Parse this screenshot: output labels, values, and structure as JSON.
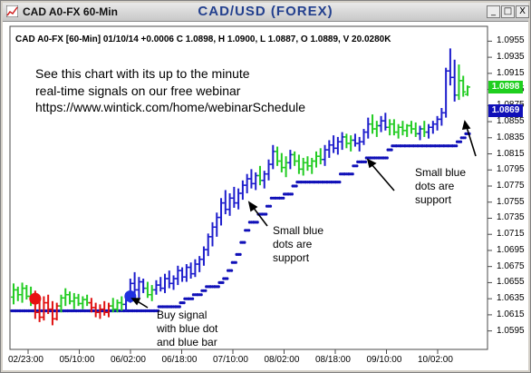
{
  "window": {
    "title_left": "CAD A0-FX 60-Min",
    "title_center": "CAD/USD (FOREX)",
    "buttons": [
      "_",
      "□",
      "X"
    ]
  },
  "info_line": "CAD A0-FX [60-Min] 01/10/14 +0.0006 C 1.0898, H 1.0900, L 1.0887, O 1.0889, V 20.0280K",
  "promo": [
    "See this chart with its up to the minute",
    "real-time signals on our free webinar",
    "https://www.wintick.com/home/webinarSchedule"
  ],
  "annotations": {
    "buy": "Buy signal\nwith blue dot\nand blue bar",
    "support_mid": "Small blue\ndots are\nsupport",
    "support_right": "Small blue\ndots are\nsupport"
  },
  "chart_data": {
    "type": "ohlc",
    "y_ticks": [
      "1.0955",
      "1.0935",
      "1.0915",
      "1.0895",
      "1.0875",
      "1.0855",
      "1.0835",
      "1.0815",
      "1.0795",
      "1.0775",
      "1.0755",
      "1.0735",
      "1.0715",
      "1.0695",
      "1.0675",
      "1.0655",
      "1.0635",
      "1.0615",
      "1.0595"
    ],
    "ylim": [
      1.0585,
      1.0965
    ],
    "x_ticks": [
      "02/23:00",
      "05/10:00",
      "06/02:00",
      "06/18:00",
      "07/10:00",
      "08/02:00",
      "08/18:00",
      "09/10:00",
      "10/02:00"
    ],
    "last_price": "1.0898",
    "support_price": "1.0869",
    "colors": {
      "up": "#1d1dcc",
      "down": "#e01010",
      "neutral": "#22cc22",
      "support": "#1010b8",
      "up_box": "#1fcf1f",
      "support_box": "#1010b8"
    },
    "bars": [
      {
        "o": 1.0637,
        "h": 1.0654,
        "l": 1.0628,
        "c": 1.0646,
        "k": "n"
      },
      {
        "o": 1.0646,
        "h": 1.065,
        "l": 1.0632,
        "c": 1.064,
        "k": "n"
      },
      {
        "o": 1.064,
        "h": 1.0655,
        "l": 1.063,
        "c": 1.0648,
        "k": "n"
      },
      {
        "o": 1.0648,
        "h": 1.0652,
        "l": 1.0634,
        "c": 1.0638,
        "k": "n"
      },
      {
        "o": 1.0638,
        "h": 1.065,
        "l": 1.0626,
        "c": 1.0632,
        "k": "n"
      },
      {
        "o": 1.0632,
        "h": 1.0645,
        "l": 1.061,
        "c": 1.0618,
        "k": "d"
      },
      {
        "o": 1.0618,
        "h": 1.0635,
        "l": 1.0606,
        "c": 1.0612,
        "k": "d"
      },
      {
        "o": 1.0612,
        "h": 1.0638,
        "l": 1.0608,
        "c": 1.063,
        "k": "d"
      },
      {
        "o": 1.063,
        "h": 1.064,
        "l": 1.0616,
        "c": 1.0622,
        "k": "d"
      },
      {
        "o": 1.0622,
        "h": 1.0632,
        "l": 1.0602,
        "c": 1.061,
        "k": "d"
      },
      {
        "o": 1.061,
        "h": 1.063,
        "l": 1.0608,
        "c": 1.0626,
        "k": "d"
      },
      {
        "o": 1.0626,
        "h": 1.064,
        "l": 1.0618,
        "c": 1.0636,
        "k": "n"
      },
      {
        "o": 1.0636,
        "h": 1.0648,
        "l": 1.0626,
        "c": 1.064,
        "k": "n"
      },
      {
        "o": 1.064,
        "h": 1.0644,
        "l": 1.0628,
        "c": 1.0632,
        "k": "n"
      },
      {
        "o": 1.0632,
        "h": 1.0642,
        "l": 1.0622,
        "c": 1.0636,
        "k": "n"
      },
      {
        "o": 1.0636,
        "h": 1.0641,
        "l": 1.0626,
        "c": 1.0629,
        "k": "n"
      },
      {
        "o": 1.0629,
        "h": 1.0638,
        "l": 1.0622,
        "c": 1.0634,
        "k": "n"
      },
      {
        "o": 1.0634,
        "h": 1.064,
        "l": 1.0626,
        "c": 1.063,
        "k": "n"
      },
      {
        "o": 1.063,
        "h": 1.0636,
        "l": 1.0618,
        "c": 1.0624,
        "k": "d"
      },
      {
        "o": 1.0624,
        "h": 1.063,
        "l": 1.0612,
        "c": 1.0618,
        "k": "d"
      },
      {
        "o": 1.0618,
        "h": 1.0628,
        "l": 1.061,
        "c": 1.0622,
        "k": "d"
      },
      {
        "o": 1.0622,
        "h": 1.0632,
        "l": 1.0614,
        "c": 1.0618,
        "k": "d"
      },
      {
        "o": 1.0618,
        "h": 1.063,
        "l": 1.0612,
        "c": 1.0626,
        "k": "d"
      },
      {
        "o": 1.0626,
        "h": 1.0636,
        "l": 1.0618,
        "c": 1.0622,
        "k": "n"
      },
      {
        "o": 1.0622,
        "h": 1.0634,
        "l": 1.0618,
        "c": 1.063,
        "k": "n"
      },
      {
        "o": 1.063,
        "h": 1.0638,
        "l": 1.062,
        "c": 1.0628,
        "k": "n"
      },
      {
        "o": 1.0628,
        "h": 1.0642,
        "l": 1.062,
        "c": 1.0636,
        "k": "u"
      },
      {
        "o": 1.0636,
        "h": 1.066,
        "l": 1.063,
        "c": 1.0654,
        "k": "u"
      },
      {
        "o": 1.0654,
        "h": 1.0668,
        "l": 1.064,
        "c": 1.0646,
        "k": "u"
      },
      {
        "o": 1.0646,
        "h": 1.0662,
        "l": 1.0636,
        "c": 1.0656,
        "k": "u"
      },
      {
        "o": 1.0656,
        "h": 1.066,
        "l": 1.0642,
        "c": 1.0648,
        "k": "u"
      },
      {
        "o": 1.0648,
        "h": 1.0656,
        "l": 1.0636,
        "c": 1.064,
        "k": "n"
      },
      {
        "o": 1.064,
        "h": 1.0652,
        "l": 1.0632,
        "c": 1.0646,
        "k": "n"
      },
      {
        "o": 1.0646,
        "h": 1.0658,
        "l": 1.064,
        "c": 1.0652,
        "k": "u"
      },
      {
        "o": 1.0652,
        "h": 1.0662,
        "l": 1.0644,
        "c": 1.0648,
        "k": "u"
      },
      {
        "o": 1.0648,
        "h": 1.0666,
        "l": 1.0642,
        "c": 1.066,
        "k": "u"
      },
      {
        "o": 1.066,
        "h": 1.067,
        "l": 1.0648,
        "c": 1.0654,
        "k": "u"
      },
      {
        "o": 1.0654,
        "h": 1.0664,
        "l": 1.0646,
        "c": 1.066,
        "k": "u"
      },
      {
        "o": 1.066,
        "h": 1.0676,
        "l": 1.0652,
        "c": 1.067,
        "k": "u"
      },
      {
        "o": 1.067,
        "h": 1.0674,
        "l": 1.0656,
        "c": 1.0662,
        "k": "u"
      },
      {
        "o": 1.0662,
        "h": 1.0678,
        "l": 1.0656,
        "c": 1.0674,
        "k": "u"
      },
      {
        "o": 1.0674,
        "h": 1.068,
        "l": 1.066,
        "c": 1.0666,
        "k": "u"
      },
      {
        "o": 1.0666,
        "h": 1.0684,
        "l": 1.0662,
        "c": 1.0678,
        "k": "u"
      },
      {
        "o": 1.0678,
        "h": 1.0688,
        "l": 1.0668,
        "c": 1.0684,
        "k": "u"
      },
      {
        "o": 1.0684,
        "h": 1.07,
        "l": 1.0676,
        "c": 1.0696,
        "k": "u"
      },
      {
        "o": 1.0696,
        "h": 1.0716,
        "l": 1.0688,
        "c": 1.0712,
        "k": "u"
      },
      {
        "o": 1.0712,
        "h": 1.073,
        "l": 1.07,
        "c": 1.0724,
        "k": "u"
      },
      {
        "o": 1.0724,
        "h": 1.0742,
        "l": 1.0712,
        "c": 1.0736,
        "k": "u"
      },
      {
        "o": 1.0736,
        "h": 1.076,
        "l": 1.0726,
        "c": 1.0754,
        "k": "u"
      },
      {
        "o": 1.0754,
        "h": 1.077,
        "l": 1.074,
        "c": 1.0746,
        "k": "u"
      },
      {
        "o": 1.0746,
        "h": 1.0766,
        "l": 1.0738,
        "c": 1.076,
        "k": "u"
      },
      {
        "o": 1.076,
        "h": 1.0774,
        "l": 1.0748,
        "c": 1.0754,
        "k": "u"
      },
      {
        "o": 1.0754,
        "h": 1.0772,
        "l": 1.0746,
        "c": 1.0766,
        "k": "u"
      },
      {
        "o": 1.0766,
        "h": 1.0782,
        "l": 1.0758,
        "c": 1.0776,
        "k": "u"
      },
      {
        "o": 1.0776,
        "h": 1.079,
        "l": 1.0766,
        "c": 1.0784,
        "k": "u"
      },
      {
        "o": 1.0784,
        "h": 1.0796,
        "l": 1.0772,
        "c": 1.0778,
        "k": "u"
      },
      {
        "o": 1.0778,
        "h": 1.0792,
        "l": 1.077,
        "c": 1.0788,
        "k": "u"
      },
      {
        "o": 1.0788,
        "h": 1.08,
        "l": 1.0776,
        "c": 1.0782,
        "k": "n"
      },
      {
        "o": 1.0782,
        "h": 1.0794,
        "l": 1.0772,
        "c": 1.079,
        "k": "u"
      },
      {
        "o": 1.079,
        "h": 1.0808,
        "l": 1.0782,
        "c": 1.0802,
        "k": "u"
      },
      {
        "o": 1.0802,
        "h": 1.0826,
        "l": 1.0796,
        "c": 1.0818,
        "k": "u"
      },
      {
        "o": 1.0818,
        "h": 1.0824,
        "l": 1.08,
        "c": 1.0806,
        "k": "n"
      },
      {
        "o": 1.0806,
        "h": 1.0816,
        "l": 1.0792,
        "c": 1.0798,
        "k": "n"
      },
      {
        "o": 1.0798,
        "h": 1.0812,
        "l": 1.0786,
        "c": 1.0804,
        "k": "n"
      },
      {
        "o": 1.0804,
        "h": 1.082,
        "l": 1.0796,
        "c": 1.0814,
        "k": "u"
      },
      {
        "o": 1.0814,
        "h": 1.0818,
        "l": 1.08,
        "c": 1.0806,
        "k": "n"
      },
      {
        "o": 1.0806,
        "h": 1.0814,
        "l": 1.079,
        "c": 1.0796,
        "k": "n"
      },
      {
        "o": 1.0796,
        "h": 1.081,
        "l": 1.0788,
        "c": 1.0804,
        "k": "n"
      },
      {
        "o": 1.0804,
        "h": 1.0812,
        "l": 1.0794,
        "c": 1.08,
        "k": "n"
      },
      {
        "o": 1.08,
        "h": 1.081,
        "l": 1.079,
        "c": 1.0806,
        "k": "n"
      },
      {
        "o": 1.0806,
        "h": 1.0818,
        "l": 1.0798,
        "c": 1.0812,
        "k": "n"
      },
      {
        "o": 1.0812,
        "h": 1.0822,
        "l": 1.0802,
        "c": 1.0808,
        "k": "n"
      },
      {
        "o": 1.0808,
        "h": 1.0826,
        "l": 1.08,
        "c": 1.082,
        "k": "u"
      },
      {
        "o": 1.082,
        "h": 1.0832,
        "l": 1.081,
        "c": 1.0826,
        "k": "u"
      },
      {
        "o": 1.0826,
        "h": 1.0838,
        "l": 1.0816,
        "c": 1.0822,
        "k": "u"
      },
      {
        "o": 1.0822,
        "h": 1.0836,
        "l": 1.0814,
        "c": 1.083,
        "k": "u"
      },
      {
        "o": 1.083,
        "h": 1.0842,
        "l": 1.082,
        "c": 1.0836,
        "k": "u"
      },
      {
        "o": 1.0836,
        "h": 1.084,
        "l": 1.0822,
        "c": 1.0828,
        "k": "n"
      },
      {
        "o": 1.0828,
        "h": 1.0838,
        "l": 1.0818,
        "c": 1.0832,
        "k": "n"
      },
      {
        "o": 1.0832,
        "h": 1.084,
        "l": 1.0824,
        "c": 1.0828,
        "k": "u"
      },
      {
        "o": 1.0828,
        "h": 1.0836,
        "l": 1.0818,
        "c": 1.083,
        "k": "u"
      },
      {
        "o": 1.083,
        "h": 1.0846,
        "l": 1.0826,
        "c": 1.0842,
        "k": "u"
      },
      {
        "o": 1.0842,
        "h": 1.086,
        "l": 1.0834,
        "c": 1.0852,
        "k": "u"
      },
      {
        "o": 1.0852,
        "h": 1.0864,
        "l": 1.084,
        "c": 1.0846,
        "k": "n"
      },
      {
        "o": 1.0846,
        "h": 1.0856,
        "l": 1.0836,
        "c": 1.085,
        "k": "n"
      },
      {
        "o": 1.085,
        "h": 1.0862,
        "l": 1.0842,
        "c": 1.0856,
        "k": "u"
      },
      {
        "o": 1.0856,
        "h": 1.0866,
        "l": 1.0844,
        "c": 1.0848,
        "k": "u"
      },
      {
        "o": 1.0848,
        "h": 1.0858,
        "l": 1.0838,
        "c": 1.0852,
        "k": "n"
      },
      {
        "o": 1.0852,
        "h": 1.0858,
        "l": 1.0838,
        "c": 1.0842,
        "k": "n"
      },
      {
        "o": 1.0842,
        "h": 1.0852,
        "l": 1.0834,
        "c": 1.0848,
        "k": "n"
      },
      {
        "o": 1.0848,
        "h": 1.0856,
        "l": 1.0838,
        "c": 1.0844,
        "k": "n"
      },
      {
        "o": 1.0844,
        "h": 1.0852,
        "l": 1.0836,
        "c": 1.085,
        "k": "n"
      },
      {
        "o": 1.085,
        "h": 1.0856,
        "l": 1.084,
        "c": 1.0846,
        "k": "n"
      },
      {
        "o": 1.0846,
        "h": 1.0854,
        "l": 1.0836,
        "c": 1.084,
        "k": "n"
      },
      {
        "o": 1.084,
        "h": 1.085,
        "l": 1.0832,
        "c": 1.0846,
        "k": "u"
      },
      {
        "o": 1.0846,
        "h": 1.0856,
        "l": 1.0836,
        "c": 1.0842,
        "k": "n"
      },
      {
        "o": 1.0842,
        "h": 1.0852,
        "l": 1.0834,
        "c": 1.0848,
        "k": "u"
      },
      {
        "o": 1.0848,
        "h": 1.0856,
        "l": 1.084,
        "c": 1.0852,
        "k": "u"
      },
      {
        "o": 1.0852,
        "h": 1.0862,
        "l": 1.0844,
        "c": 1.0858,
        "k": "u"
      },
      {
        "o": 1.0858,
        "h": 1.0872,
        "l": 1.085,
        "c": 1.0866,
        "k": "u"
      },
      {
        "o": 1.0866,
        "h": 1.0922,
        "l": 1.086,
        "c": 1.0918,
        "k": "u"
      },
      {
        "o": 1.0918,
        "h": 1.0946,
        "l": 1.09,
        "c": 1.091,
        "k": "u"
      },
      {
        "o": 1.091,
        "h": 1.0932,
        "l": 1.088,
        "c": 1.0888,
        "k": "u"
      },
      {
        "o": 1.0888,
        "h": 1.0926,
        "l": 1.0882,
        "c": 1.0906,
        "k": "n"
      },
      {
        "o": 1.0906,
        "h": 1.0912,
        "l": 1.0886,
        "c": 1.0892,
        "k": "n"
      },
      {
        "o": 1.0889,
        "h": 1.09,
        "l": 1.0887,
        "c": 1.0898,
        "k": "n"
      }
    ],
    "signal_dots": [
      {
        "i": 5,
        "v": 1.0635,
        "color": "#e81010"
      },
      {
        "i": 27,
        "v": 1.0638,
        "color": "#2030e0"
      }
    ]
  }
}
